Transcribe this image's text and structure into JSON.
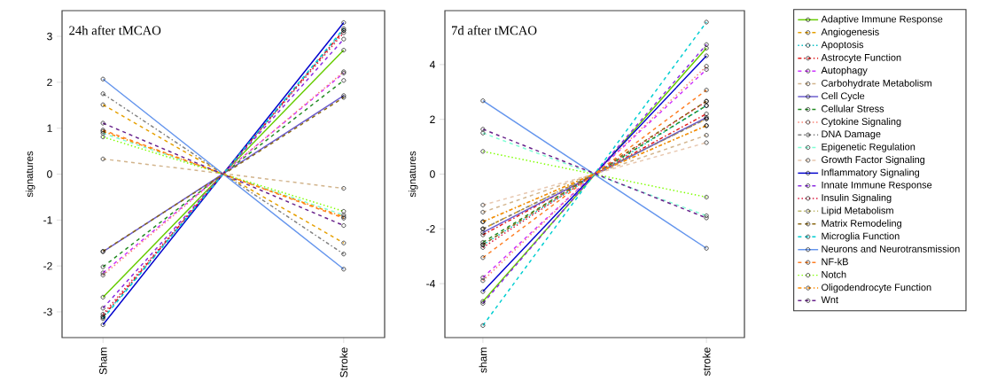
{
  "chart_data": [
    {
      "type": "line",
      "title": "24h after tMCAO",
      "ylabel": "signatures",
      "categories": [
        "Sham",
        "Stroke"
      ],
      "ylim": [
        -3.56,
        3.56
      ],
      "yticks": [
        -3,
        -2,
        -1,
        0,
        1,
        2,
        3
      ],
      "marker": "circle",
      "series": [
        {
          "color": "#66cc00",
          "line_style": "solid",
          "values": [
            -2.68,
            2.7
          ]
        },
        {
          "color": "#e6a000",
          "line_style": "dashed",
          "values": [
            1.51,
            -1.5
          ]
        },
        {
          "color": "#00bfc4",
          "line_style": "dotted",
          "values": [
            -3.12,
            3.13
          ]
        },
        {
          "color": "#e41a1c",
          "line_style": "dashdot",
          "values": [
            -3.1,
            3.13
          ]
        },
        {
          "color": "#cc33ff",
          "line_style": "dashed",
          "values": [
            -2.15,
            2.2
          ]
        },
        {
          "color": "#d2b48c",
          "line_style": "dashed",
          "values": [
            0.33,
            -0.31
          ]
        },
        {
          "color": "#6a5acd",
          "line_style": "solid",
          "values": [
            -1.69,
            1.71
          ]
        },
        {
          "color": "#228b22",
          "line_style": "dashed",
          "values": [
            -2.02,
            2.04
          ]
        },
        {
          "color": "#fa8072",
          "line_style": "dotted",
          "values": [
            -2.2,
            2.23
          ]
        },
        {
          "color": "#808080",
          "line_style": "dashdot",
          "values": [
            1.75,
            -1.74
          ]
        },
        {
          "color": "#7fffd4",
          "line_style": "dashed",
          "values": [
            0.89,
            -0.89
          ]
        },
        {
          "color": "#0000cd",
          "line_style": "solid",
          "values": [
            -3.28,
            3.3
          ]
        },
        {
          "color": "#8a2be2",
          "line_style": "dashed",
          "values": [
            -2.92,
            2.94
          ]
        },
        {
          "color": "#dc143c",
          "line_style": "dotted",
          "values": [
            -3.05,
            3.08
          ]
        },
        {
          "color": "#8b6914",
          "line_style": "dashed",
          "values": [
            -1.68,
            1.67
          ]
        },
        {
          "color": "#00ced1",
          "line_style": "dashed",
          "values": [
            -3.15,
            3.17
          ]
        },
        {
          "color": "#6495ed",
          "line_style": "solid",
          "values": [
            2.07,
            -2.07
          ]
        },
        {
          "color": "#ff7f24",
          "line_style": "dashed",
          "values": [
            0.96,
            -0.96
          ]
        },
        {
          "color": "#7fff00",
          "line_style": "dotted",
          "values": [
            0.81,
            -0.81
          ]
        },
        {
          "color": "#ff8c00",
          "line_style": "dashdot",
          "values": [
            0.93,
            -0.93
          ]
        },
        {
          "color": "#68228b",
          "line_style": "dashed",
          "values": [
            1.11,
            -1.12
          ]
        }
      ]
    },
    {
      "type": "line",
      "title": "7d after tMCAO",
      "ylabel": "signatures",
      "categories": [
        "sham",
        "stroke"
      ],
      "ylim": [
        -5.97,
        5.97
      ],
      "yticks": [
        -4,
        -2,
        0,
        2,
        4
      ],
      "marker": "circle",
      "legend": "right",
      "series": [
        {
          "name": "Adaptive Immune Response",
          "color": "#66cc00",
          "line_style": "solid",
          "values": [
            -4.65,
            4.6
          ]
        },
        {
          "name": "Angiogenesis",
          "color": "#e6a000",
          "line_style": "dashed",
          "values": [
            -2.0,
            2.02
          ]
        },
        {
          "name": "Apoptosis",
          "color": "#00bfc4",
          "line_style": "dotted",
          "values": [
            -2.58,
            2.5
          ]
        },
        {
          "name": "Astrocyte Function",
          "color": "#e41a1c",
          "line_style": "dashdot",
          "values": [
            -2.22,
            2.2
          ]
        },
        {
          "name": "Autophagy",
          "color": "#cc33ff",
          "line_style": "dashed",
          "values": [
            -3.78,
            3.82
          ]
        },
        {
          "name": "Carbohydrate Metabolism",
          "color": "#d2b48c",
          "line_style": "dashed",
          "values": [
            -1.39,
            1.42
          ]
        },
        {
          "name": "Cell Cycle",
          "color": "#6a5acd",
          "line_style": "solid",
          "values": [
            -2.13,
            2.07
          ]
        },
        {
          "name": "Cellular Stress",
          "color": "#228b22",
          "line_style": "dashed",
          "values": [
            -2.49,
            2.5
          ]
        },
        {
          "name": "Cytokine Signaling",
          "color": "#fa8072",
          "line_style": "dotted",
          "values": [
            -3.89,
            3.94
          ]
        },
        {
          "name": "DNA Damage",
          "color": "#808080",
          "line_style": "dashdot",
          "values": [
            -2.0,
            2.02
          ]
        },
        {
          "name": "Epigenetic Regulation",
          "color": "#7fffd4",
          "line_style": "dashed",
          "values": [
            1.5,
            -1.52
          ]
        },
        {
          "name": "Growth Factor Signaling",
          "color": "#e8c8b0",
          "line_style": "dashed",
          "values": [
            -1.13,
            1.15
          ]
        },
        {
          "name": "Inflammatory Signaling",
          "color": "#0000cd",
          "line_style": "solid",
          "values": [
            -4.29,
            4.32
          ]
        },
        {
          "name": "Innate Immune Response",
          "color": "#8a2be2",
          "line_style": "dashed",
          "values": [
            -4.72,
            4.73
          ]
        },
        {
          "name": "Insulin Signaling",
          "color": "#dc143c",
          "line_style": "dotted",
          "values": [
            -2.68,
            2.66
          ]
        },
        {
          "name": "Lipid Metabolism",
          "color": "#bdb76b",
          "line_style": "dashdot",
          "values": [
            -1.74,
            1.77
          ]
        },
        {
          "name": "Matrix Remodeling",
          "color": "#8b6914",
          "line_style": "dashed",
          "values": [
            -2.58,
            2.66
          ]
        },
        {
          "name": "Microglia Function",
          "color": "#00ced1",
          "line_style": "dashed",
          "values": [
            -5.53,
            5.55
          ]
        },
        {
          "name": "Neurons and Neurotransmission",
          "color": "#6495ed",
          "line_style": "solid",
          "values": [
            2.68,
            -2.71
          ]
        },
        {
          "name": "NF-kB",
          "color": "#ff7f24",
          "line_style": "dashed",
          "values": [
            -3.05,
            3.07
          ]
        },
        {
          "name": "Notch",
          "color": "#7fff00",
          "line_style": "dotted",
          "values": [
            0.83,
            -0.84
          ]
        },
        {
          "name": "Oligodendrocyte Function",
          "color": "#ff8c00",
          "line_style": "dashdot",
          "values": [
            -1.74,
            1.77
          ]
        },
        {
          "name": "Wnt",
          "color": "#68228b",
          "line_style": "dashed",
          "values": [
            1.64,
            -1.6
          ]
        }
      ]
    }
  ]
}
